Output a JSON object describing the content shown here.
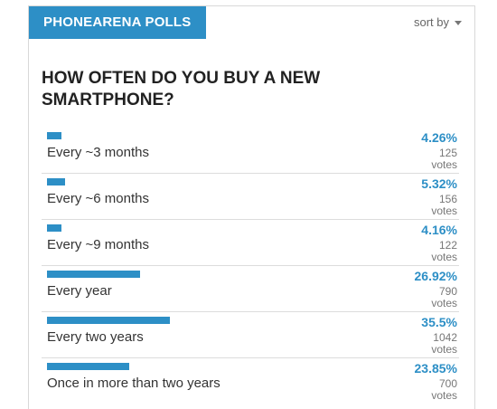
{
  "header": {
    "title": "PHONEARENA POLLS",
    "sort_label": "sort by"
  },
  "question": "HOW OFTEN DO YOU BUY A NEW SMARTPHONE?",
  "accent": "#2d8fc6",
  "options": [
    {
      "label": "Every ~3 months",
      "percent": "4.26%",
      "votes": "125",
      "votes_unit": "votes",
      "fraction": 0.0426
    },
    {
      "label": "Every ~6 months",
      "percent": "5.32%",
      "votes": "156",
      "votes_unit": "votes",
      "fraction": 0.0532
    },
    {
      "label": "Every ~9 months",
      "percent": "4.16%",
      "votes": "122",
      "votes_unit": "votes",
      "fraction": 0.0416
    },
    {
      "label": "Every year",
      "percent": "26.92%",
      "votes": "790",
      "votes_unit": "votes",
      "fraction": 0.2692
    },
    {
      "label": "Every two years",
      "percent": "35.5%",
      "votes": "1042",
      "votes_unit": "votes",
      "fraction": 0.355
    },
    {
      "label": "Once in more than two years",
      "percent": "23.85%",
      "votes": "700",
      "votes_unit": "votes",
      "fraction": 0.2385
    }
  ]
}
